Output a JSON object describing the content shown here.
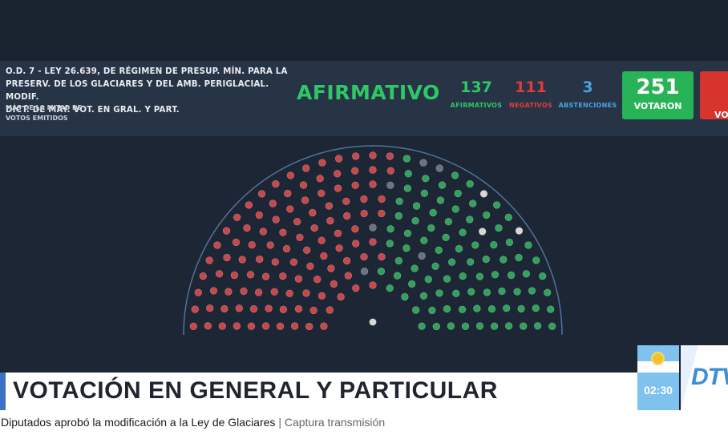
{
  "header": {
    "title": "O.D. 7 - LEY 26.639, DE RÉGIMEN DE PRESUP. MÍN. PARA LA\nPRESERV. DE LOS GLACIARES Y DEL AMB. PERIGLACIAL. MODIF.\nDICT. DE MAY. VOT. EN GRAL. Y PART.",
    "subtitle": "MÁS DE LA MITAD DE\nVOTOS EMITIDOS",
    "result": "AFIRMATIVO"
  },
  "stats": {
    "afirmativos": {
      "value": "137",
      "label": "AFIRMATIVOS",
      "color": "#2ec867"
    },
    "negativos": {
      "value": "111",
      "label": "NEGATIVOS",
      "color": "#e23b3b"
    },
    "abstenciones": {
      "value": "3",
      "label": "ABSTENCIONES",
      "color": "#4aa3e0"
    },
    "votaron": {
      "value": "251",
      "label": "VOTARON",
      "color": "#27b356"
    },
    "red_box_label": "VOT"
  },
  "chamber": {
    "afirmativos": 137,
    "negativos": 111,
    "abstenciones": 3,
    "absent": 6,
    "colors": {
      "positive": "#2fa35c",
      "negative": "#c9474a",
      "abstention": "#d8d8d8",
      "absent": "#6b7280",
      "president": "#d8d8d8"
    }
  },
  "banner": {
    "text": "VOTACIÓN EN GENERAL Y PARTICULAR",
    "accent_color": "#3c72c6"
  },
  "clock": "02:30",
  "logo_text": "DTV",
  "caption": {
    "main": "Diputados aprobó la modificación a la Ley de Glaciares",
    "separator": "|",
    "source": "Captura transmisión"
  }
}
